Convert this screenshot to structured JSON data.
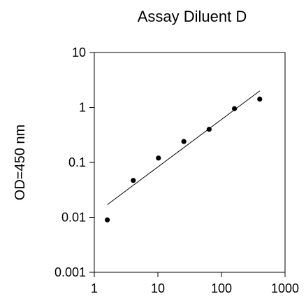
{
  "chart_data": {
    "type": "scatter",
    "title": "Assay Diluent D",
    "xlabel": "",
    "ylabel": "OD=450 nm",
    "xscale": "log",
    "yscale": "log",
    "xlim": [
      1,
      1000
    ],
    "ylim": [
      0.001,
      10
    ],
    "xticks": [
      1,
      10,
      100,
      1000
    ],
    "xtick_labels": [
      "1",
      "10",
      "100",
      "1000"
    ],
    "yticks": [
      0.001,
      0.01,
      0.1,
      1,
      10
    ],
    "ytick_labels": [
      "0.001",
      "0.01",
      "0.1",
      "1",
      "10"
    ],
    "grid": false,
    "series": [
      {
        "x": [
          1.6,
          4.1,
          10.2,
          25.6,
          64,
          160,
          400
        ],
        "y": [
          0.009,
          0.047,
          0.12,
          0.24,
          0.4,
          0.95,
          1.42
        ]
      }
    ],
    "trendline": {
      "x": [
        1.6,
        400
      ],
      "y": [
        0.017,
        2.0
      ]
    },
    "colors": {
      "points": "#000000",
      "line": "#000000",
      "axes": "#000000"
    }
  }
}
